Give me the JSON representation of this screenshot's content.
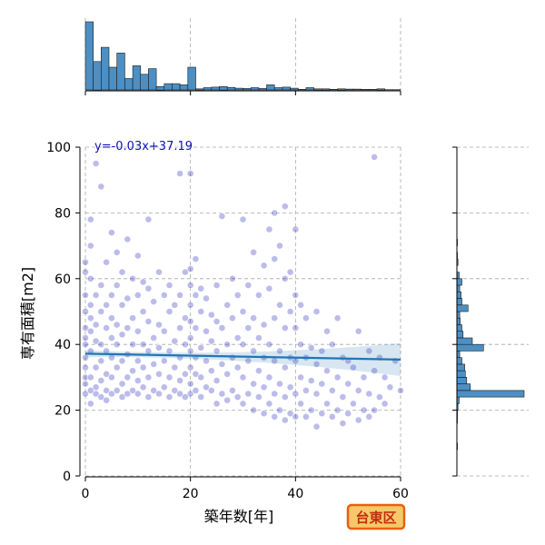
{
  "chart_data": {
    "type": "scatter",
    "x_label": "築年数[年]",
    "y_label": "専有面積[m2]",
    "xlim": [
      0,
      60
    ],
    "ylim": [
      0,
      100
    ],
    "x_ticks": [
      0,
      20,
      40,
      60
    ],
    "y_ticks": [
      0,
      20,
      40,
      60,
      80,
      100
    ],
    "grid": true,
    "regression": {
      "equation_label": "y=-0.03x+37.19",
      "slope": -0.03,
      "intercept": 37.19
    },
    "scatter_color": "#1010b8",
    "line_color": "#1f77b4",
    "hist_color": "#4c8fc4",
    "points": [
      [
        0,
        25
      ],
      [
        0,
        28
      ],
      [
        0,
        30
      ],
      [
        0,
        33
      ],
      [
        0,
        36
      ],
      [
        0,
        40
      ],
      [
        0,
        42
      ],
      [
        0,
        45
      ],
      [
        0,
        50
      ],
      [
        0,
        55
      ],
      [
        0,
        62
      ],
      [
        0,
        65
      ],
      [
        1,
        22
      ],
      [
        1,
        26
      ],
      [
        1,
        30
      ],
      [
        1,
        38
      ],
      [
        1,
        44
      ],
      [
        1,
        48
      ],
      [
        1,
        52
      ],
      [
        1,
        60
      ],
      [
        1,
        70
      ],
      [
        1,
        78
      ],
      [
        2,
        25
      ],
      [
        2,
        27
      ],
      [
        2,
        33
      ],
      [
        2,
        41
      ],
      [
        2,
        46
      ],
      [
        2,
        55
      ],
      [
        2,
        95
      ],
      [
        3,
        24
      ],
      [
        3,
        29
      ],
      [
        3,
        35
      ],
      [
        3,
        40
      ],
      [
        3,
        50
      ],
      [
        3,
        58
      ],
      [
        3,
        88
      ],
      [
        4,
        23
      ],
      [
        4,
        26
      ],
      [
        4,
        31
      ],
      [
        4,
        38
      ],
      [
        4,
        45
      ],
      [
        4,
        52
      ],
      [
        4,
        65
      ],
      [
        5,
        25
      ],
      [
        5,
        30
      ],
      [
        5,
        36
      ],
      [
        5,
        42
      ],
      [
        5,
        48
      ],
      [
        5,
        55
      ],
      [
        5,
        74
      ],
      [
        6,
        26
      ],
      [
        6,
        33
      ],
      [
        6,
        40
      ],
      [
        6,
        46
      ],
      [
        6,
        58
      ],
      [
        6,
        68
      ],
      [
        7,
        24
      ],
      [
        7,
        28
      ],
      [
        7,
        35
      ],
      [
        7,
        43
      ],
      [
        7,
        52
      ],
      [
        7,
        62
      ],
      [
        8,
        25
      ],
      [
        8,
        30
      ],
      [
        8,
        37
      ],
      [
        8,
        45
      ],
      [
        8,
        54
      ],
      [
        8,
        72
      ],
      [
        9,
        26
      ],
      [
        9,
        32
      ],
      [
        9,
        40
      ],
      [
        9,
        48
      ],
      [
        9,
        60
      ],
      [
        10,
        25
      ],
      [
        10,
        29
      ],
      [
        10,
        35
      ],
      [
        10,
        44
      ],
      [
        10,
        55
      ],
      [
        10,
        67
      ],
      [
        11,
        27
      ],
      [
        11,
        33
      ],
      [
        11,
        40
      ],
      [
        11,
        50
      ],
      [
        11,
        59
      ],
      [
        12,
        24
      ],
      [
        12,
        30
      ],
      [
        12,
        38
      ],
      [
        12,
        47
      ],
      [
        12,
        57
      ],
      [
        12,
        78
      ],
      [
        13,
        26
      ],
      [
        13,
        34
      ],
      [
        13,
        42
      ],
      [
        13,
        53
      ],
      [
        14,
        25
      ],
      [
        14,
        31
      ],
      [
        14,
        39
      ],
      [
        14,
        46
      ],
      [
        14,
        62
      ],
      [
        15,
        27
      ],
      [
        15,
        35
      ],
      [
        15,
        44
      ],
      [
        15,
        55
      ],
      [
        16,
        24
      ],
      [
        16,
        30
      ],
      [
        16,
        38
      ],
      [
        16,
        50
      ],
      [
        16,
        58
      ],
      [
        17,
        26
      ],
      [
        17,
        33
      ],
      [
        17,
        41
      ],
      [
        17,
        52
      ],
      [
        18,
        25
      ],
      [
        18,
        29
      ],
      [
        18,
        36
      ],
      [
        18,
        45
      ],
      [
        18,
        55
      ],
      [
        18,
        92
      ],
      [
        19,
        24
      ],
      [
        19,
        31
      ],
      [
        19,
        40
      ],
      [
        19,
        48
      ],
      [
        19,
        62
      ],
      [
        20,
        25
      ],
      [
        20,
        28
      ],
      [
        20,
        33
      ],
      [
        20,
        38
      ],
      [
        20,
        42
      ],
      [
        20,
        47
      ],
      [
        20,
        52
      ],
      [
        20,
        58
      ],
      [
        20,
        63
      ],
      [
        20,
        92
      ],
      [
        21,
        26
      ],
      [
        21,
        31
      ],
      [
        21,
        36
      ],
      [
        21,
        45
      ],
      [
        21,
        55
      ],
      [
        21,
        66
      ],
      [
        22,
        24
      ],
      [
        22,
        30
      ],
      [
        22,
        39
      ],
      [
        22,
        50
      ],
      [
        22,
        57
      ],
      [
        23,
        27
      ],
      [
        23,
        35
      ],
      [
        23,
        44
      ],
      [
        23,
        54
      ],
      [
        24,
        26
      ],
      [
        24,
        32
      ],
      [
        24,
        41
      ],
      [
        24,
        49
      ],
      [
        25,
        22
      ],
      [
        25,
        29
      ],
      [
        25,
        38
      ],
      [
        25,
        47
      ],
      [
        25,
        58
      ],
      [
        26,
        25
      ],
      [
        26,
        34
      ],
      [
        26,
        45
      ],
      [
        26,
        79
      ],
      [
        27,
        23
      ],
      [
        27,
        31
      ],
      [
        27,
        40
      ],
      [
        27,
        52
      ],
      [
        28,
        26
      ],
      [
        28,
        36
      ],
      [
        28,
        48
      ],
      [
        28,
        60
      ],
      [
        29,
        24
      ],
      [
        29,
        33
      ],
      [
        29,
        42
      ],
      [
        29,
        55
      ],
      [
        30,
        22
      ],
      [
        30,
        30
      ],
      [
        30,
        40
      ],
      [
        30,
        50
      ],
      [
        30,
        78
      ],
      [
        31,
        25
      ],
      [
        31,
        35
      ],
      [
        31,
        45
      ],
      [
        31,
        58
      ],
      [
        32,
        20
      ],
      [
        32,
        28
      ],
      [
        32,
        38
      ],
      [
        32,
        48
      ],
      [
        32,
        68
      ],
      [
        33,
        24
      ],
      [
        33,
        32
      ],
      [
        33,
        42
      ],
      [
        33,
        55
      ],
      [
        34,
        19
      ],
      [
        34,
        27
      ],
      [
        34,
        36
      ],
      [
        34,
        46
      ],
      [
        34,
        64
      ],
      [
        35,
        22
      ],
      [
        35,
        30
      ],
      [
        35,
        40
      ],
      [
        35,
        57
      ],
      [
        35,
        75
      ],
      [
        36,
        18
      ],
      [
        36,
        25
      ],
      [
        36,
        35
      ],
      [
        36,
        48
      ],
      [
        36,
        66
      ],
      [
        36,
        80
      ],
      [
        37,
        20
      ],
      [
        37,
        28
      ],
      [
        37,
        38
      ],
      [
        37,
        52
      ],
      [
        37,
        70
      ],
      [
        38,
        17
      ],
      [
        38,
        24
      ],
      [
        38,
        33
      ],
      [
        38,
        45
      ],
      [
        38,
        60
      ],
      [
        38,
        82
      ],
      [
        39,
        19
      ],
      [
        39,
        27
      ],
      [
        39,
        36
      ],
      [
        39,
        50
      ],
      [
        39,
        62
      ],
      [
        40,
        18
      ],
      [
        40,
        25
      ],
      [
        40,
        35
      ],
      [
        40,
        45
      ],
      [
        40,
        55
      ],
      [
        40,
        75
      ],
      [
        41,
        22
      ],
      [
        41,
        30
      ],
      [
        41,
        40
      ],
      [
        41,
        52
      ],
      [
        42,
        18
      ],
      [
        42,
        26
      ],
      [
        42,
        36
      ],
      [
        42,
        48
      ],
      [
        43,
        20
      ],
      [
        43,
        29
      ],
      [
        43,
        39
      ],
      [
        44,
        15
      ],
      [
        44,
        25
      ],
      [
        44,
        34
      ],
      [
        44,
        50
      ],
      [
        45,
        19
      ],
      [
        45,
        28
      ],
      [
        45,
        38
      ],
      [
        46,
        22
      ],
      [
        46,
        32
      ],
      [
        46,
        44
      ],
      [
        47,
        18
      ],
      [
        47,
        26
      ],
      [
        47,
        40
      ],
      [
        48,
        20
      ],
      [
        48,
        30
      ],
      [
        48,
        48
      ],
      [
        49,
        16
      ],
      [
        49,
        24
      ],
      [
        49,
        36
      ],
      [
        50,
        19
      ],
      [
        50,
        28
      ],
      [
        50,
        35
      ],
      [
        51,
        22
      ],
      [
        51,
        33
      ],
      [
        52,
        17
      ],
      [
        52,
        26
      ],
      [
        52,
        44
      ],
      [
        53,
        20
      ],
      [
        53,
        30
      ],
      [
        54,
        18
      ],
      [
        54,
        25
      ],
      [
        54,
        38
      ],
      [
        55,
        20
      ],
      [
        55,
        32
      ],
      [
        55,
        97
      ],
      [
        56,
        24
      ],
      [
        56,
        36
      ],
      [
        57,
        22
      ],
      [
        57,
        30
      ],
      [
        58,
        27
      ],
      [
        59,
        35
      ],
      [
        60,
        26
      ]
    ],
    "x_hist": {
      "bins": [
        0,
        1.5,
        3,
        4.5,
        6,
        7.5,
        9,
        10.5,
        12,
        13.5,
        15,
        16.5,
        18,
        19.5,
        21,
        22.5,
        24,
        25.5,
        27,
        28.5,
        30,
        31.5,
        33,
        34.5,
        36,
        37.5,
        39,
        40.5,
        42,
        43.5,
        45,
        46.5,
        48,
        49.5,
        51,
        52.5,
        54,
        55.5,
        57,
        58.5,
        60
      ],
      "counts": [
        240,
        100,
        150,
        80,
        130,
        40,
        85,
        55,
        75,
        12,
        22,
        22,
        18,
        80,
        4,
        8,
        10,
        12,
        9,
        6,
        5,
        8,
        5,
        18,
        8,
        10,
        6,
        2,
        8,
        4,
        4,
        2,
        4,
        3,
        3,
        2,
        2,
        4,
        1,
        1
      ]
    },
    "y_hist": {
      "bins": [
        0,
        2,
        4,
        6,
        8,
        10,
        12,
        14,
        16,
        18,
        20,
        22,
        24,
        26,
        28,
        30,
        32,
        34,
        36,
        38,
        40,
        42,
        44,
        46,
        48,
        50,
        52,
        54,
        56,
        58,
        60,
        62,
        64,
        66,
        68,
        70,
        72,
        74,
        76,
        78,
        80
      ],
      "counts": [
        0,
        0,
        0,
        0,
        2,
        0,
        0,
        0,
        2,
        2,
        4,
        8,
        240,
        48,
        35,
        30,
        28,
        18,
        10,
        95,
        55,
        22,
        18,
        12,
        10,
        40,
        18,
        15,
        10,
        18,
        8,
        0,
        4,
        2,
        0,
        2,
        0,
        0,
        0,
        0
      ]
    },
    "badge": {
      "text": "台東区",
      "fill": "#f5c869",
      "stroke": "#e8600e",
      "text_color": "#c42d10"
    }
  }
}
